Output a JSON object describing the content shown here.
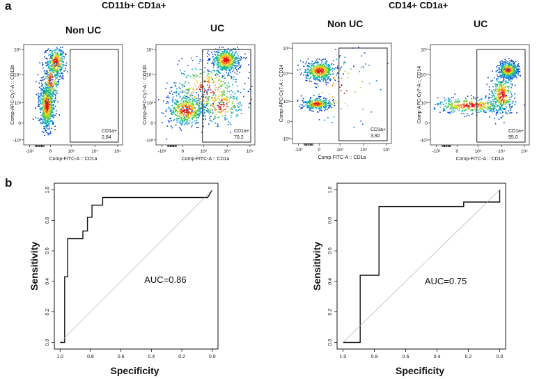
{
  "panel_a": {
    "letter": "a",
    "groups": [
      {
        "title": "CD11b+ CD1a+",
        "plots": [
          {
            "title": "Non UC",
            "ylabel": "Comp-APC-Cy7-A :: CD11b",
            "xlabel": "Comp-FITC-A :: CD1a",
            "gate_label": "CD1a+",
            "gate_value": "2,64"
          },
          {
            "title": "UC",
            "ylabel": "Comp-APC-Cy7-A :: CD11b",
            "xlabel": "Comp-FITC-A :: CD1a",
            "gate_label": "CD1a+",
            "gate_value": "70,2"
          }
        ]
      },
      {
        "title": "CD14+ CD1a+",
        "plots": [
          {
            "title": "Non UC",
            "ylabel": "Comp-APC-Cy7-A :: CD14",
            "xlabel": "Comp-FITC-A :: CD1a",
            "gate_label": "CD1a+",
            "gate_value": "3,92"
          },
          {
            "title": "UC",
            "ylabel": "Comp-APC-Cy7-A :: CD14",
            "xlabel": "Comp-FITC-A :: CD1a",
            "gate_label": "CD1a+",
            "gate_value": "95,0"
          }
        ]
      }
    ],
    "y_ticks": [
      "10⁵",
      "10⁴",
      "10³",
      "0",
      "-10³"
    ],
    "x_ticks": [
      "-10³",
      "0",
      "10³",
      "10⁴",
      "10⁵"
    ]
  },
  "panel_b": {
    "letter": "b"
  },
  "chart_data": [
    {
      "type": "line",
      "title": "",
      "xlabel": "Specificity",
      "ylabel": "Sensitivity",
      "xlim": [
        1.0,
        0.0
      ],
      "ylim": [
        0.0,
        1.0
      ],
      "x_ticks": [
        "1.0",
        "0.8",
        "0.6",
        "0.4",
        "0.2",
        "0.0"
      ],
      "y_ticks": [
        "0.0",
        "0.2",
        "0.4",
        "0.6",
        "0.8",
        "1.0"
      ],
      "annotation": "AUC=0.86",
      "series": [
        {
          "name": "ROC",
          "x": [
            1.0,
            0.97,
            0.97,
            0.95,
            0.95,
            0.85,
            0.85,
            0.82,
            0.82,
            0.79,
            0.79,
            0.72,
            0.72,
            0.03,
            0.0
          ],
          "y": [
            0.0,
            0.0,
            0.43,
            0.43,
            0.68,
            0.68,
            0.73,
            0.73,
            0.82,
            0.82,
            0.9,
            0.9,
            0.95,
            0.95,
            1.0
          ]
        },
        {
          "name": "Reference",
          "x": [
            1.0,
            0.0
          ],
          "y": [
            0.0,
            1.0
          ]
        }
      ]
    },
    {
      "type": "line",
      "title": "",
      "xlabel": "Specificity",
      "ylabel": "Sensitivity",
      "xlim": [
        1.0,
        0.0
      ],
      "ylim": [
        0.0,
        1.0
      ],
      "x_ticks": [
        "1.0",
        "0.8",
        "0.6",
        "0.4",
        "0.2",
        "0.0"
      ],
      "y_ticks": [
        "0.0",
        "0.2",
        "0.4",
        "0.6",
        "0.8",
        "1.0"
      ],
      "annotation": "AUC=0.75",
      "series": [
        {
          "name": "ROC",
          "x": [
            1.0,
            0.89,
            0.89,
            0.77,
            0.77,
            0.23,
            0.23,
            0.0,
            0.0
          ],
          "y": [
            0.0,
            0.0,
            0.44,
            0.44,
            0.89,
            0.89,
            0.92,
            0.92,
            1.0
          ]
        },
        {
          "name": "Reference",
          "x": [
            1.0,
            0.0
          ],
          "y": [
            0.0,
            1.0
          ]
        }
      ]
    }
  ]
}
